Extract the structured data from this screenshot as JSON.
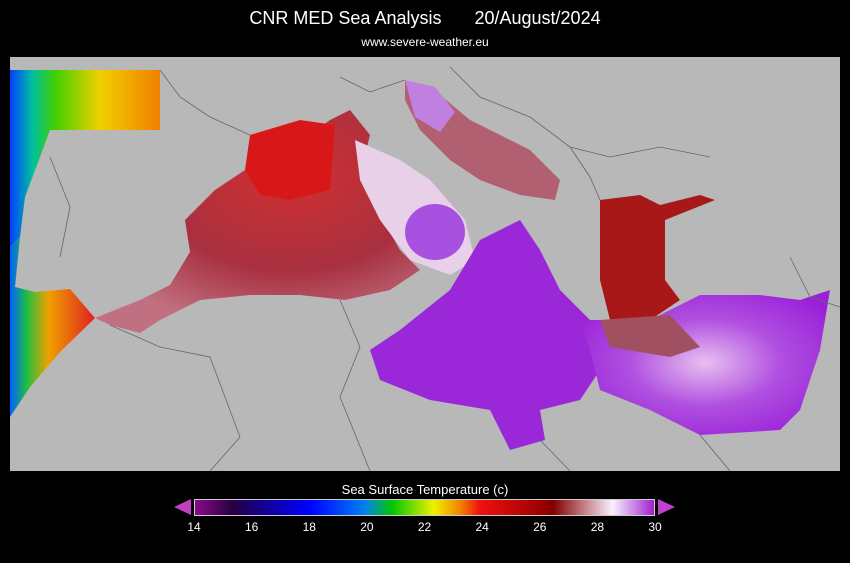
{
  "header": {
    "title": "CNR MED Sea Analysis",
    "date": "20/August/2024",
    "source": "www.severe-weather.eu"
  },
  "colorbar": {
    "label": "Sea Surface Temperature (c)",
    "min": 14,
    "max": 30,
    "ticks": [
      "14",
      "16",
      "18",
      "20",
      "22",
      "24",
      "26",
      "28",
      "30"
    ],
    "colors": {
      "cold": "#8a0a8a",
      "blue": "#0000ff",
      "green": "#00c800",
      "yellow": "#f0f000",
      "red": "#f01010",
      "darkred": "#800000",
      "white": "#f8f0ff",
      "hot": "#a020d0"
    }
  },
  "map": {
    "land_color": "#b8b8b8",
    "background": "#000000"
  }
}
